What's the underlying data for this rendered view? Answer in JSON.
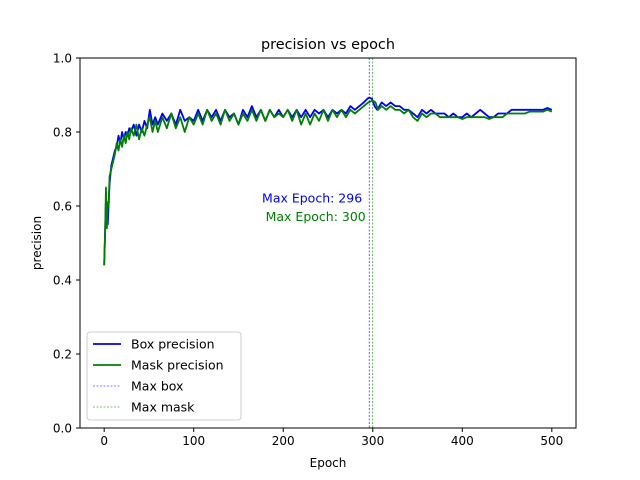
{
  "chart_data": {
    "type": "line",
    "title": "precision vs epoch",
    "xlabel": "Epoch",
    "ylabel": "precision",
    "xlim": [
      -27,
      527
    ],
    "ylim": [
      0.0,
      1.0
    ],
    "x_ticks": [
      0,
      100,
      200,
      300,
      400,
      500
    ],
    "y_ticks": [
      0.0,
      0.2,
      0.4,
      0.6,
      0.8,
      1.0
    ],
    "x_tick_labels": [
      "0",
      "100",
      "200",
      "300",
      "400",
      "500"
    ],
    "y_tick_labels": [
      "0.0",
      "0.2",
      "0.4",
      "0.6",
      "0.8",
      "1.0"
    ],
    "grid": false,
    "legend_position": "lower-left",
    "legend": [
      {
        "label": "Box precision",
        "color": "#0000ff",
        "style": "solid"
      },
      {
        "label": "Mask precision",
        "color": "#008000",
        "style": "solid"
      },
      {
        "label": "Max box",
        "color": "#0000ff",
        "style": "dashed"
      },
      {
        "label": "Max mask",
        "color": "#008000",
        "style": "dashed"
      }
    ],
    "series": [
      {
        "name": "Box precision",
        "color": "#0000ff",
        "points": [
          [
            0,
            0.44
          ],
          [
            2,
            0.62
          ],
          [
            4,
            0.55
          ],
          [
            6,
            0.66
          ],
          [
            8,
            0.71
          ],
          [
            10,
            0.73
          ],
          [
            12,
            0.75
          ],
          [
            14,
            0.76
          ],
          [
            16,
            0.79
          ],
          [
            18,
            0.77
          ],
          [
            20,
            0.8
          ],
          [
            22,
            0.78
          ],
          [
            24,
            0.8
          ],
          [
            26,
            0.79
          ],
          [
            28,
            0.81
          ],
          [
            30,
            0.8
          ],
          [
            33,
            0.82
          ],
          [
            36,
            0.79
          ],
          [
            39,
            0.82
          ],
          [
            42,
            0.8
          ],
          [
            45,
            0.83
          ],
          [
            48,
            0.81
          ],
          [
            51,
            0.86
          ],
          [
            54,
            0.82
          ],
          [
            57,
            0.84
          ],
          [
            60,
            0.82
          ],
          [
            65,
            0.85
          ],
          [
            70,
            0.83
          ],
          [
            75,
            0.85
          ],
          [
            80,
            0.82
          ],
          [
            85,
            0.86
          ],
          [
            90,
            0.83
          ],
          [
            95,
            0.84
          ],
          [
            100,
            0.83
          ],
          [
            105,
            0.86
          ],
          [
            110,
            0.83
          ],
          [
            115,
            0.86
          ],
          [
            120,
            0.84
          ],
          [
            125,
            0.86
          ],
          [
            130,
            0.83
          ],
          [
            135,
            0.86
          ],
          [
            140,
            0.84
          ],
          [
            145,
            0.85
          ],
          [
            150,
            0.82
          ],
          [
            155,
            0.86
          ],
          [
            160,
            0.84
          ],
          [
            165,
            0.87
          ],
          [
            170,
            0.84
          ],
          [
            175,
            0.86
          ],
          [
            180,
            0.83
          ],
          [
            185,
            0.86
          ],
          [
            190,
            0.84
          ],
          [
            195,
            0.86
          ],
          [
            200,
            0.84
          ],
          [
            205,
            0.86
          ],
          [
            210,
            0.84
          ],
          [
            215,
            0.86
          ],
          [
            220,
            0.84
          ],
          [
            225,
            0.86
          ],
          [
            230,
            0.84
          ],
          [
            235,
            0.86
          ],
          [
            240,
            0.85
          ],
          [
            245,
            0.86
          ],
          [
            250,
            0.84
          ],
          [
            255,
            0.86
          ],
          [
            260,
            0.85
          ],
          [
            265,
            0.86
          ],
          [
            270,
            0.85
          ],
          [
            275,
            0.87
          ],
          [
            280,
            0.86
          ],
          [
            285,
            0.87
          ],
          [
            290,
            0.88
          ],
          [
            294,
            0.89
          ],
          [
            296,
            0.893
          ],
          [
            299,
            0.89
          ],
          [
            302,
            0.87
          ],
          [
            305,
            0.86
          ],
          [
            310,
            0.88
          ],
          [
            315,
            0.87
          ],
          [
            320,
            0.88
          ],
          [
            325,
            0.87
          ],
          [
            330,
            0.87
          ],
          [
            335,
            0.86
          ],
          [
            340,
            0.86
          ],
          [
            345,
            0.85
          ],
          [
            350,
            0.84
          ],
          [
            355,
            0.86
          ],
          [
            360,
            0.85
          ],
          [
            365,
            0.86
          ],
          [
            370,
            0.85
          ],
          [
            375,
            0.85
          ],
          [
            380,
            0.85
          ],
          [
            385,
            0.84
          ],
          [
            390,
            0.85
          ],
          [
            395,
            0.84
          ],
          [
            400,
            0.84
          ],
          [
            405,
            0.85
          ],
          [
            410,
            0.84
          ],
          [
            415,
            0.85
          ],
          [
            420,
            0.86
          ],
          [
            425,
            0.85
          ],
          [
            430,
            0.84
          ],
          [
            435,
            0.84
          ],
          [
            440,
            0.85
          ],
          [
            445,
            0.85
          ],
          [
            450,
            0.85
          ],
          [
            455,
            0.86
          ],
          [
            460,
            0.86
          ],
          [
            465,
            0.86
          ],
          [
            470,
            0.86
          ],
          [
            475,
            0.86
          ],
          [
            480,
            0.86
          ],
          [
            485,
            0.86
          ],
          [
            490,
            0.86
          ],
          [
            495,
            0.865
          ],
          [
            500,
            0.86
          ]
        ]
      },
      {
        "name": "Mask precision",
        "color": "#008000",
        "points": [
          [
            0,
            0.44
          ],
          [
            1,
            0.52
          ],
          [
            2,
            0.65
          ],
          [
            3,
            0.54
          ],
          [
            4,
            0.61
          ],
          [
            5,
            0.6
          ],
          [
            6,
            0.68
          ],
          [
            8,
            0.7
          ],
          [
            10,
            0.72
          ],
          [
            12,
            0.74
          ],
          [
            14,
            0.77
          ],
          [
            16,
            0.75
          ],
          [
            18,
            0.78
          ],
          [
            20,
            0.76
          ],
          [
            22,
            0.79
          ],
          [
            24,
            0.77
          ],
          [
            26,
            0.8
          ],
          [
            28,
            0.78
          ],
          [
            30,
            0.81
          ],
          [
            33,
            0.79
          ],
          [
            36,
            0.82
          ],
          [
            39,
            0.78
          ],
          [
            42,
            0.81
          ],
          [
            45,
            0.79
          ],
          [
            48,
            0.82
          ],
          [
            51,
            0.84
          ],
          [
            54,
            0.8
          ],
          [
            57,
            0.83
          ],
          [
            60,
            0.8
          ],
          [
            65,
            0.84
          ],
          [
            70,
            0.81
          ],
          [
            75,
            0.85
          ],
          [
            80,
            0.81
          ],
          [
            85,
            0.84
          ],
          [
            90,
            0.8
          ],
          [
            95,
            0.84
          ],
          [
            100,
            0.82
          ],
          [
            105,
            0.85
          ],
          [
            110,
            0.82
          ],
          [
            115,
            0.86
          ],
          [
            120,
            0.83
          ],
          [
            125,
            0.85
          ],
          [
            130,
            0.82
          ],
          [
            135,
            0.86
          ],
          [
            140,
            0.83
          ],
          [
            145,
            0.85
          ],
          [
            150,
            0.82
          ],
          [
            155,
            0.85
          ],
          [
            160,
            0.83
          ],
          [
            165,
            0.86
          ],
          [
            170,
            0.83
          ],
          [
            175,
            0.86
          ],
          [
            180,
            0.83
          ],
          [
            185,
            0.86
          ],
          [
            190,
            0.84
          ],
          [
            195,
            0.85
          ],
          [
            200,
            0.84
          ],
          [
            205,
            0.86
          ],
          [
            210,
            0.83
          ],
          [
            215,
            0.86
          ],
          [
            220,
            0.82
          ],
          [
            225,
            0.85
          ],
          [
            230,
            0.82
          ],
          [
            235,
            0.85
          ],
          [
            240,
            0.83
          ],
          [
            245,
            0.86
          ],
          [
            250,
            0.83
          ],
          [
            255,
            0.86
          ],
          [
            260,
            0.84
          ],
          [
            265,
            0.86
          ],
          [
            270,
            0.84
          ],
          [
            275,
            0.86
          ],
          [
            280,
            0.85
          ],
          [
            285,
            0.86
          ],
          [
            290,
            0.87
          ],
          [
            295,
            0.88
          ],
          [
            300,
            0.885
          ],
          [
            303,
            0.88
          ],
          [
            306,
            0.86
          ],
          [
            310,
            0.87
          ],
          [
            315,
            0.86
          ],
          [
            320,
            0.87
          ],
          [
            325,
            0.86
          ],
          [
            330,
            0.86
          ],
          [
            335,
            0.85
          ],
          [
            340,
            0.86
          ],
          [
            345,
            0.84
          ],
          [
            350,
            0.83
          ],
          [
            355,
            0.85
          ],
          [
            360,
            0.84
          ],
          [
            365,
            0.85
          ],
          [
            370,
            0.85
          ],
          [
            375,
            0.84
          ],
          [
            380,
            0.84
          ],
          [
            385,
            0.84
          ],
          [
            390,
            0.84
          ],
          [
            395,
            0.84
          ],
          [
            400,
            0.835
          ],
          [
            405,
            0.84
          ],
          [
            410,
            0.84
          ],
          [
            415,
            0.84
          ],
          [
            420,
            0.84
          ],
          [
            425,
            0.84
          ],
          [
            430,
            0.835
          ],
          [
            435,
            0.84
          ],
          [
            440,
            0.84
          ],
          [
            445,
            0.84
          ],
          [
            450,
            0.85
          ],
          [
            455,
            0.85
          ],
          [
            460,
            0.85
          ],
          [
            465,
            0.85
          ],
          [
            470,
            0.85
          ],
          [
            475,
            0.855
          ],
          [
            480,
            0.855
          ],
          [
            485,
            0.855
          ],
          [
            490,
            0.855
          ],
          [
            495,
            0.86
          ],
          [
            500,
            0.855
          ]
        ]
      }
    ],
    "vlines": [
      {
        "name": "Max box",
        "x": 296,
        "color": "#0000ff",
        "style": "dashed"
      },
      {
        "name": "Max mask",
        "x": 300,
        "color": "#008000",
        "style": "dashed"
      }
    ],
    "annotations": [
      {
        "text": "Max Epoch: 296",
        "x": 296,
        "y": 0.62,
        "color": "#0000ff"
      },
      {
        "text": " Max Epoch: 300",
        "x": 300,
        "y": 0.57,
        "color": "#008000"
      }
    ]
  }
}
